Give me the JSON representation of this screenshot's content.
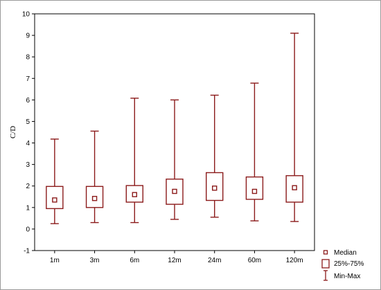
{
  "chart_data": {
    "type": "box",
    "ylabel": "C/D",
    "xlabel": "",
    "ylim": [
      -1,
      10
    ],
    "yticks": [
      -1,
      0,
      1,
      2,
      3,
      4,
      5,
      6,
      7,
      8,
      9,
      10
    ],
    "grid": false,
    "legend_position": "bottom-right",
    "color": "#8b1a1a",
    "categories": [
      "1m",
      "3m",
      "6m",
      "12m",
      "24m",
      "60m",
      "120m"
    ],
    "min": [
      0.25,
      0.3,
      0.3,
      0.45,
      0.55,
      0.38,
      0.35
    ],
    "q1": [
      0.95,
      1.0,
      1.25,
      1.15,
      1.33,
      1.38,
      1.25
    ],
    "median": [
      1.35,
      1.42,
      1.6,
      1.75,
      1.9,
      1.75,
      1.92
    ],
    "q3": [
      1.98,
      1.98,
      2.02,
      2.32,
      2.62,
      2.42,
      2.48
    ],
    "max": [
      4.18,
      4.55,
      6.08,
      6.0,
      6.22,
      6.78,
      9.1
    ],
    "legend": [
      "Median",
      "25%-75%",
      "Min-Max"
    ]
  }
}
